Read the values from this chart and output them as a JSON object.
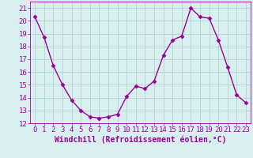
{
  "x": [
    0,
    1,
    2,
    3,
    4,
    5,
    6,
    7,
    8,
    9,
    10,
    11,
    12,
    13,
    14,
    15,
    16,
    17,
    18,
    19,
    20,
    21,
    22,
    23
  ],
  "y": [
    20.3,
    18.7,
    16.5,
    15.0,
    13.8,
    13.0,
    12.5,
    12.4,
    12.5,
    12.7,
    14.1,
    14.9,
    14.7,
    15.3,
    17.3,
    18.5,
    18.8,
    21.0,
    20.3,
    20.2,
    18.5,
    16.4,
    14.2,
    13.6
  ],
  "line_color": "#990099",
  "marker": "D",
  "marker_size": 2.5,
  "line_width": 1.0,
  "bg_color": "#d8eff0",
  "grid_color": "#b0cccc",
  "xlabel": "Windchill (Refroidissement éolien,°C)",
  "xlabel_color": "#990099",
  "xlabel_fontsize": 7,
  "tick_color": "#990099",
  "tick_labelsize": 6.5,
  "ylim": [
    12,
    21.5
  ],
  "yticks": [
    12,
    13,
    14,
    15,
    16,
    17,
    18,
    19,
    20,
    21
  ],
  "xlim": [
    -0.5,
    23.5
  ],
  "xticks": [
    0,
    1,
    2,
    3,
    4,
    5,
    6,
    7,
    8,
    9,
    10,
    11,
    12,
    13,
    14,
    15,
    16,
    17,
    18,
    19,
    20,
    21,
    22,
    23
  ]
}
